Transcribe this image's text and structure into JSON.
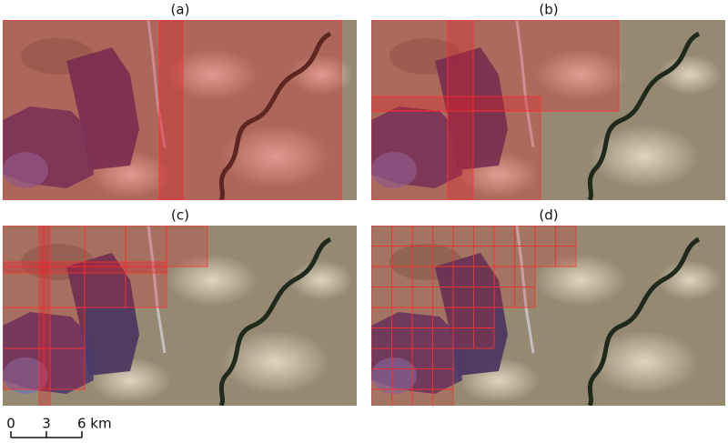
{
  "panels": [
    {
      "label": "(a)"
    },
    {
      "label": "(b)"
    },
    {
      "label": "(c)"
    },
    {
      "label": "(d)"
    }
  ],
  "scale_bar": {
    "labels": [
      "0",
      "3",
      "6 km"
    ]
  }
}
